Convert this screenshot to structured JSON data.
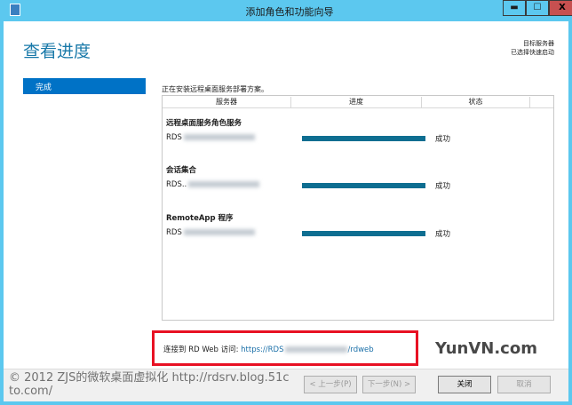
{
  "window": {
    "title": "添加角色和功能向导",
    "minimize": "▬",
    "maximize": "☐",
    "close": "X",
    "accent": "#5cc8ef"
  },
  "header": {
    "page_title": "查看进度",
    "target_label": "目标服务器",
    "target_value": "已选择快速启动"
  },
  "sidebar": {
    "items": [
      {
        "label": "完成",
        "selected": true
      }
    ]
  },
  "main": {
    "intro": "正在安装远程桌面服务部署方案。",
    "columns": [
      "服务器",
      "进度",
      "状态"
    ],
    "groups": [
      {
        "title": "远程桌面服务角色服务",
        "server": "RDS",
        "progress": 100,
        "status": "成功"
      },
      {
        "title": "会话集合",
        "server": "RDS..",
        "progress": 100,
        "status": "成功"
      },
      {
        "title": "RemoteApp 程序",
        "server": "RDS",
        "progress": 100,
        "status": "成功"
      }
    ],
    "link_label": "连接到 RD Web 访问:",
    "link_prefix": "https://RDS",
    "link_suffix": "/rdweb"
  },
  "footer": {
    "prev": "< 上一步(P)",
    "next": "下一步(N) >",
    "close": "关闭",
    "cancel": "取消"
  },
  "watermark": {
    "text": "© 2012 ZJS的微软桌面虚拟化 http://rdsrv.blog.51cto.com/",
    "logo": "YunVN.com"
  }
}
